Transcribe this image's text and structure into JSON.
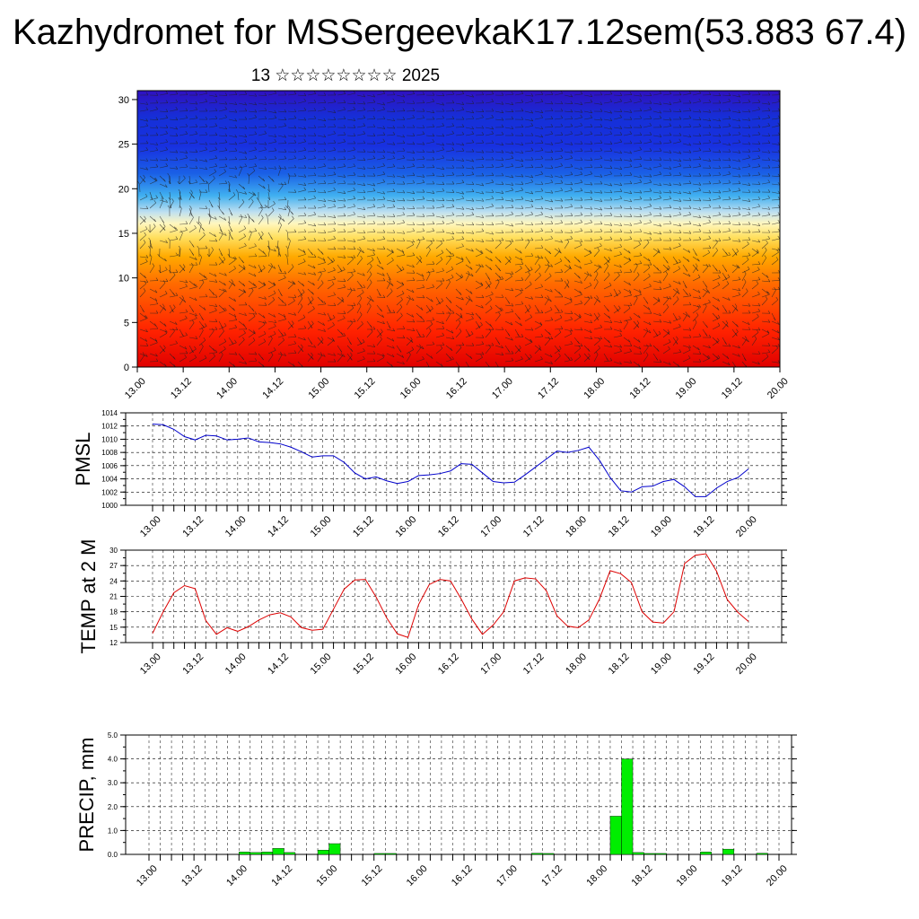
{
  "header": {
    "title": "Kazhydromet for MSSergeevkaK17.12sem(53.883 67.4)",
    "subtitle": "13 ☆☆☆☆☆☆☆☆ 2025"
  },
  "chart_data": [
    {
      "type": "heatmap",
      "title": "",
      "xlabel": "",
      "ylabel": "",
      "x_ticks": [
        "13.00",
        "13.12",
        "14.00",
        "14.12",
        "15.00",
        "15.12",
        "16.00",
        "16.12",
        "17.00",
        "17.12",
        "18.00",
        "18.12",
        "19.00",
        "19.12",
        "20.00"
      ],
      "y_ticks": [
        "0",
        "5",
        "10",
        "15",
        "20",
        "25",
        "30"
      ],
      "ylim": [
        0,
        31
      ],
      "colors": {
        "low_levels": "#e60000",
        "mid_levels": "#ffd040",
        "high_levels": "#1030e0"
      },
      "overlay": "wind barbs"
    },
    {
      "type": "line",
      "ylabel": "PMSL",
      "ylim": [
        1000,
        1014
      ],
      "y_ticks": [
        "1000",
        "1002",
        "1004",
        "1006",
        "1008",
        "1010",
        "1012",
        "1014"
      ],
      "x_ticks": [
        "13.00",
        "13.12",
        "14.00",
        "14.12",
        "15.00",
        "15.12",
        "16.00",
        "16.12",
        "17.00",
        "17.12",
        "18.00",
        "18.12",
        "19.00",
        "19.12",
        "20.00"
      ],
      "color": "#0000cc",
      "values": [
        1012.3,
        1012.2,
        1011.5,
        1010.4,
        1009.9,
        1010.6,
        1010.5,
        1009.9,
        1010.0,
        1010.2,
        1009.6,
        1009.5,
        1009.3,
        1008.8,
        1008.1,
        1007.3,
        1007.5,
        1007.5,
        1006.5,
        1004.9,
        1004.0,
        1004.3,
        1003.7,
        1003.3,
        1003.6,
        1004.5,
        1004.6,
        1004.8,
        1005.2,
        1006.3,
        1006.2,
        1004.9,
        1003.6,
        1003.4,
        1003.5,
        1004.6,
        1005.8,
        1007.0,
        1008.2,
        1008.0,
        1008.3,
        1008.8,
        1006.8,
        1004.2,
        1002.2,
        1002.0,
        1002.8,
        1002.9,
        1003.6,
        1003.9,
        1002.8,
        1001.3,
        1001.3,
        1002.6,
        1003.6,
        1004.2,
        1005.5
      ]
    },
    {
      "type": "line",
      "ylabel": "TEMP at 2 M",
      "ylim": [
        12,
        30
      ],
      "y_ticks": [
        "12",
        "15",
        "18",
        "21",
        "24",
        "27",
        "30"
      ],
      "x_ticks": [
        "13.00",
        "13.12",
        "14.00",
        "14.12",
        "15.00",
        "15.12",
        "16.00",
        "16.12",
        "17.00",
        "17.12",
        "18.00",
        "18.12",
        "19.00",
        "19.12",
        "20.00"
      ],
      "color": "#dd0000",
      "values": [
        13.8,
        18.0,
        21.7,
        23.1,
        22.5,
        16.3,
        13.6,
        14.9,
        14.2,
        15.1,
        16.4,
        17.4,
        17.8,
        17.0,
        14.9,
        14.4,
        14.6,
        18.5,
        22.4,
        24.2,
        24.3,
        20.9,
        16.8,
        13.7,
        13.0,
        19.4,
        23.3,
        24.3,
        24.0,
        20.5,
        16.6,
        13.6,
        15.4,
        18.0,
        24.0,
        24.6,
        24.4,
        22.1,
        17.2,
        15.2,
        14.9,
        16.4,
        20.5,
        26.0,
        25.4,
        23.7,
        18.0,
        16.0,
        15.8,
        18.0,
        27.4,
        29.0,
        29.3,
        25.9,
        20.4,
        17.9,
        16.1
      ]
    },
    {
      "type": "bar",
      "ylabel": "PRECIP, mm",
      "ylim": [
        0,
        5
      ],
      "y_ticks": [
        "0.0",
        "1.0",
        "2.0",
        "3.0",
        "4.0",
        "5.0"
      ],
      "x_ticks": [
        "13.00",
        "13.12",
        "14.00",
        "14.12",
        "15.00",
        "15.12",
        "16.00",
        "16.12",
        "17.00",
        "17.12",
        "18.00",
        "18.12",
        "19.00",
        "19.12",
        "20.00"
      ],
      "color": "#00ee00",
      "values": [
        0,
        0,
        0,
        0,
        0,
        0,
        0,
        0,
        0.1,
        0.08,
        0.1,
        0.25,
        0.08,
        0,
        0,
        0.18,
        0.45,
        0,
        0,
        0,
        0.04,
        0.04,
        0,
        0,
        0,
        0,
        0,
        0,
        0,
        0,
        0,
        0,
        0,
        0,
        0.05,
        0.04,
        0,
        0,
        0,
        0,
        0,
        1.6,
        4.0,
        0.08,
        0.04,
        0.04,
        0,
        0,
        0,
        0.1,
        0,
        0.22,
        0,
        0,
        0.05,
        0
      ]
    }
  ]
}
